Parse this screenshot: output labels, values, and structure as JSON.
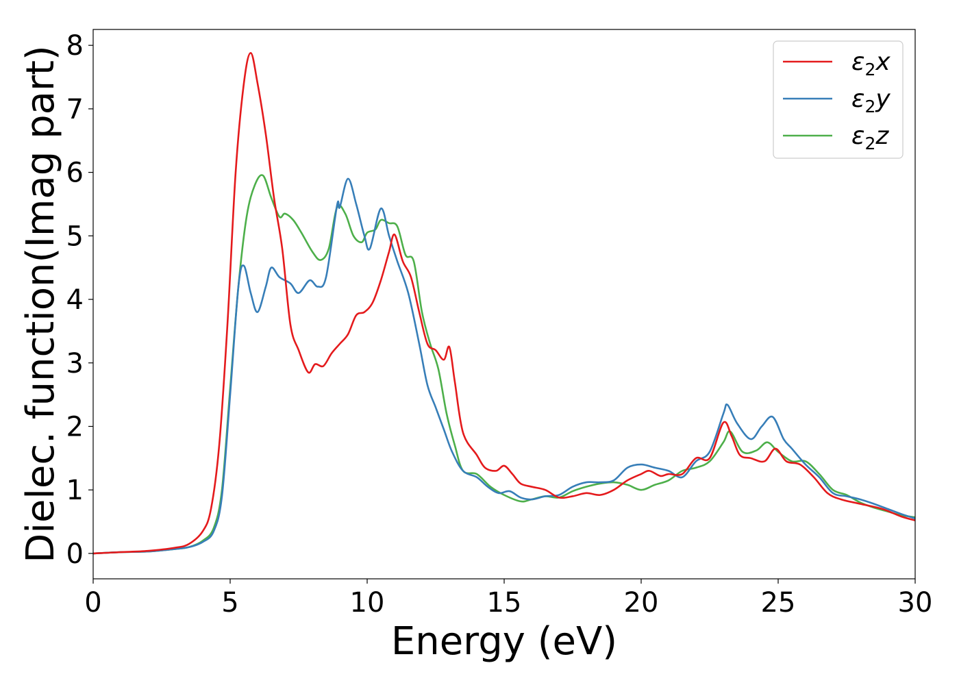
{
  "chart_data": {
    "type": "line",
    "title": "",
    "xlabel": "Energy (eV)",
    "ylabel": "Dielec. function(Imag part)",
    "xlim": [
      0,
      30
    ],
    "ylim": [
      -0.4,
      8.25
    ],
    "xticks": [
      0,
      5,
      10,
      15,
      20,
      25,
      30
    ],
    "yticks": [
      0,
      1,
      2,
      3,
      4,
      5,
      6,
      7,
      8
    ],
    "grid": false,
    "legend_position": "top-right",
    "series": [
      {
        "name": "ε₂x",
        "legend_base": "ε",
        "legend_sub": "2",
        "legend_suffix": "x",
        "color": "#e41a1c",
        "points": [
          [
            0,
            0.0
          ],
          [
            1,
            0.02
          ],
          [
            2,
            0.04
          ],
          [
            3,
            0.09
          ],
          [
            3.5,
            0.15
          ],
          [
            4,
            0.35
          ],
          [
            4.3,
            0.7
          ],
          [
            4.6,
            1.7
          ],
          [
            4.9,
            3.6
          ],
          [
            5.2,
            6.0
          ],
          [
            5.5,
            7.4
          ],
          [
            5.75,
            7.88
          ],
          [
            6.0,
            7.4
          ],
          [
            6.3,
            6.6
          ],
          [
            6.6,
            5.6
          ],
          [
            6.9,
            4.8
          ],
          [
            7.2,
            3.6
          ],
          [
            7.5,
            3.2
          ],
          [
            7.85,
            2.85
          ],
          [
            8.1,
            2.98
          ],
          [
            8.4,
            2.95
          ],
          [
            8.7,
            3.15
          ],
          [
            9.0,
            3.3
          ],
          [
            9.3,
            3.45
          ],
          [
            9.6,
            3.75
          ],
          [
            9.9,
            3.8
          ],
          [
            10.2,
            3.95
          ],
          [
            10.5,
            4.3
          ],
          [
            10.8,
            4.75
          ],
          [
            11.0,
            5.02
          ],
          [
            11.3,
            4.6
          ],
          [
            11.6,
            4.35
          ],
          [
            11.9,
            3.8
          ],
          [
            12.2,
            3.3
          ],
          [
            12.5,
            3.2
          ],
          [
            12.8,
            3.05
          ],
          [
            13.0,
            3.25
          ],
          [
            13.2,
            2.7
          ],
          [
            13.5,
            1.9
          ],
          [
            14.0,
            1.55
          ],
          [
            14.3,
            1.35
          ],
          [
            14.7,
            1.3
          ],
          [
            15.0,
            1.38
          ],
          [
            15.3,
            1.25
          ],
          [
            15.6,
            1.1
          ],
          [
            16.0,
            1.05
          ],
          [
            16.5,
            1.0
          ],
          [
            17.0,
            0.88
          ],
          [
            17.5,
            0.9
          ],
          [
            18.0,
            0.95
          ],
          [
            18.5,
            0.92
          ],
          [
            19.0,
            1.0
          ],
          [
            19.5,
            1.15
          ],
          [
            20.0,
            1.25
          ],
          [
            20.3,
            1.3
          ],
          [
            20.7,
            1.22
          ],
          [
            21.0,
            1.25
          ],
          [
            21.5,
            1.25
          ],
          [
            22.0,
            1.5
          ],
          [
            22.5,
            1.5
          ],
          [
            23.0,
            2.06
          ],
          [
            23.3,
            1.85
          ],
          [
            23.6,
            1.55
          ],
          [
            24.0,
            1.5
          ],
          [
            24.5,
            1.45
          ],
          [
            24.9,
            1.65
          ],
          [
            25.3,
            1.45
          ],
          [
            25.8,
            1.4
          ],
          [
            26.3,
            1.2
          ],
          [
            26.8,
            0.95
          ],
          [
            27.3,
            0.85
          ],
          [
            28.0,
            0.78
          ],
          [
            28.8,
            0.7
          ],
          [
            29.5,
            0.58
          ],
          [
            30,
            0.52
          ]
        ]
      },
      {
        "name": "ε₂y",
        "legend_base": "ε",
        "legend_sub": "2",
        "legend_suffix": "y",
        "color": "#377eb8",
        "points": [
          [
            0,
            0.0
          ],
          [
            1,
            0.02
          ],
          [
            2,
            0.03
          ],
          [
            3,
            0.07
          ],
          [
            3.5,
            0.1
          ],
          [
            4,
            0.18
          ],
          [
            4.4,
            0.35
          ],
          [
            4.7,
            0.9
          ],
          [
            5.0,
            2.5
          ],
          [
            5.3,
            4.2
          ],
          [
            5.5,
            4.53
          ],
          [
            5.75,
            4.1
          ],
          [
            6.0,
            3.8
          ],
          [
            6.3,
            4.2
          ],
          [
            6.5,
            4.5
          ],
          [
            6.8,
            4.35
          ],
          [
            7.2,
            4.25
          ],
          [
            7.5,
            4.1
          ],
          [
            7.9,
            4.3
          ],
          [
            8.2,
            4.2
          ],
          [
            8.5,
            4.35
          ],
          [
            8.9,
            5.48
          ],
          [
            9.0,
            5.45
          ],
          [
            9.3,
            5.9
          ],
          [
            9.6,
            5.5
          ],
          [
            9.9,
            5.0
          ],
          [
            10.1,
            4.8
          ],
          [
            10.5,
            5.43
          ],
          [
            10.8,
            5.0
          ],
          [
            11.1,
            4.6
          ],
          [
            11.5,
            4.1
          ],
          [
            11.9,
            3.3
          ],
          [
            12.2,
            2.65
          ],
          [
            12.5,
            2.3
          ],
          [
            12.8,
            1.95
          ],
          [
            13.1,
            1.6
          ],
          [
            13.5,
            1.3
          ],
          [
            14.0,
            1.2
          ],
          [
            14.4,
            1.05
          ],
          [
            14.8,
            0.95
          ],
          [
            15.2,
            0.98
          ],
          [
            15.6,
            0.88
          ],
          [
            16.0,
            0.85
          ],
          [
            16.5,
            0.9
          ],
          [
            17.0,
            0.92
          ],
          [
            17.5,
            1.05
          ],
          [
            18.0,
            1.12
          ],
          [
            18.5,
            1.12
          ],
          [
            19.0,
            1.15
          ],
          [
            19.5,
            1.35
          ],
          [
            20.0,
            1.4
          ],
          [
            20.5,
            1.35
          ],
          [
            21.0,
            1.3
          ],
          [
            21.5,
            1.2
          ],
          [
            22.0,
            1.45
          ],
          [
            22.5,
            1.6
          ],
          [
            23.0,
            2.2
          ],
          [
            23.15,
            2.34
          ],
          [
            23.5,
            2.05
          ],
          [
            24.0,
            1.8
          ],
          [
            24.4,
            2.0
          ],
          [
            24.8,
            2.15
          ],
          [
            25.2,
            1.8
          ],
          [
            25.5,
            1.65
          ],
          [
            26.0,
            1.4
          ],
          [
            26.5,
            1.2
          ],
          [
            27.0,
            0.95
          ],
          [
            27.5,
            0.9
          ],
          [
            28.0,
            0.85
          ],
          [
            28.5,
            0.78
          ],
          [
            29.0,
            0.7
          ],
          [
            29.5,
            0.62
          ],
          [
            30,
            0.55
          ]
        ]
      },
      {
        "name": "ε₂z",
        "legend_base": "ε",
        "legend_sub": "2",
        "legend_suffix": "z",
        "color": "#4daf4a",
        "points": [
          [
            0,
            0.0
          ],
          [
            1,
            0.02
          ],
          [
            2,
            0.03
          ],
          [
            3,
            0.07
          ],
          [
            3.5,
            0.1
          ],
          [
            4,
            0.2
          ],
          [
            4.4,
            0.4
          ],
          [
            4.7,
            1.0
          ],
          [
            5.0,
            2.6
          ],
          [
            5.3,
            4.2
          ],
          [
            5.6,
            5.3
          ],
          [
            5.9,
            5.8
          ],
          [
            6.2,
            5.95
          ],
          [
            6.5,
            5.6
          ],
          [
            6.8,
            5.3
          ],
          [
            7.0,
            5.35
          ],
          [
            7.3,
            5.25
          ],
          [
            7.6,
            5.05
          ],
          [
            8.0,
            4.75
          ],
          [
            8.3,
            4.62
          ],
          [
            8.6,
            4.8
          ],
          [
            8.9,
            5.45
          ],
          [
            9.2,
            5.35
          ],
          [
            9.5,
            5.0
          ],
          [
            9.8,
            4.9
          ],
          [
            10.0,
            5.05
          ],
          [
            10.3,
            5.1
          ],
          [
            10.5,
            5.25
          ],
          [
            10.8,
            5.2
          ],
          [
            11.1,
            5.15
          ],
          [
            11.4,
            4.7
          ],
          [
            11.7,
            4.6
          ],
          [
            12.0,
            3.8
          ],
          [
            12.3,
            3.3
          ],
          [
            12.6,
            2.9
          ],
          [
            12.9,
            2.2
          ],
          [
            13.2,
            1.7
          ],
          [
            13.5,
            1.3
          ],
          [
            14.0,
            1.25
          ],
          [
            14.5,
            1.05
          ],
          [
            15.0,
            0.92
          ],
          [
            15.6,
            0.82
          ],
          [
            16.0,
            0.85
          ],
          [
            16.5,
            0.9
          ],
          [
            17.0,
            0.88
          ],
          [
            17.5,
            0.98
          ],
          [
            18.0,
            1.05
          ],
          [
            18.5,
            1.1
          ],
          [
            19.0,
            1.12
          ],
          [
            19.5,
            1.08
          ],
          [
            20.0,
            1.0
          ],
          [
            20.5,
            1.08
          ],
          [
            21.0,
            1.15
          ],
          [
            21.5,
            1.3
          ],
          [
            22.0,
            1.35
          ],
          [
            22.5,
            1.45
          ],
          [
            23.0,
            1.75
          ],
          [
            23.25,
            1.92
          ],
          [
            23.7,
            1.6
          ],
          [
            24.2,
            1.62
          ],
          [
            24.6,
            1.75
          ],
          [
            25.0,
            1.6
          ],
          [
            25.5,
            1.45
          ],
          [
            26.0,
            1.45
          ],
          [
            26.5,
            1.25
          ],
          [
            27.0,
            1.0
          ],
          [
            27.5,
            0.92
          ],
          [
            28.0,
            0.8
          ],
          [
            28.5,
            0.72
          ],
          [
            29.0,
            0.66
          ],
          [
            29.5,
            0.6
          ],
          [
            30,
            0.57
          ]
        ]
      }
    ]
  }
}
